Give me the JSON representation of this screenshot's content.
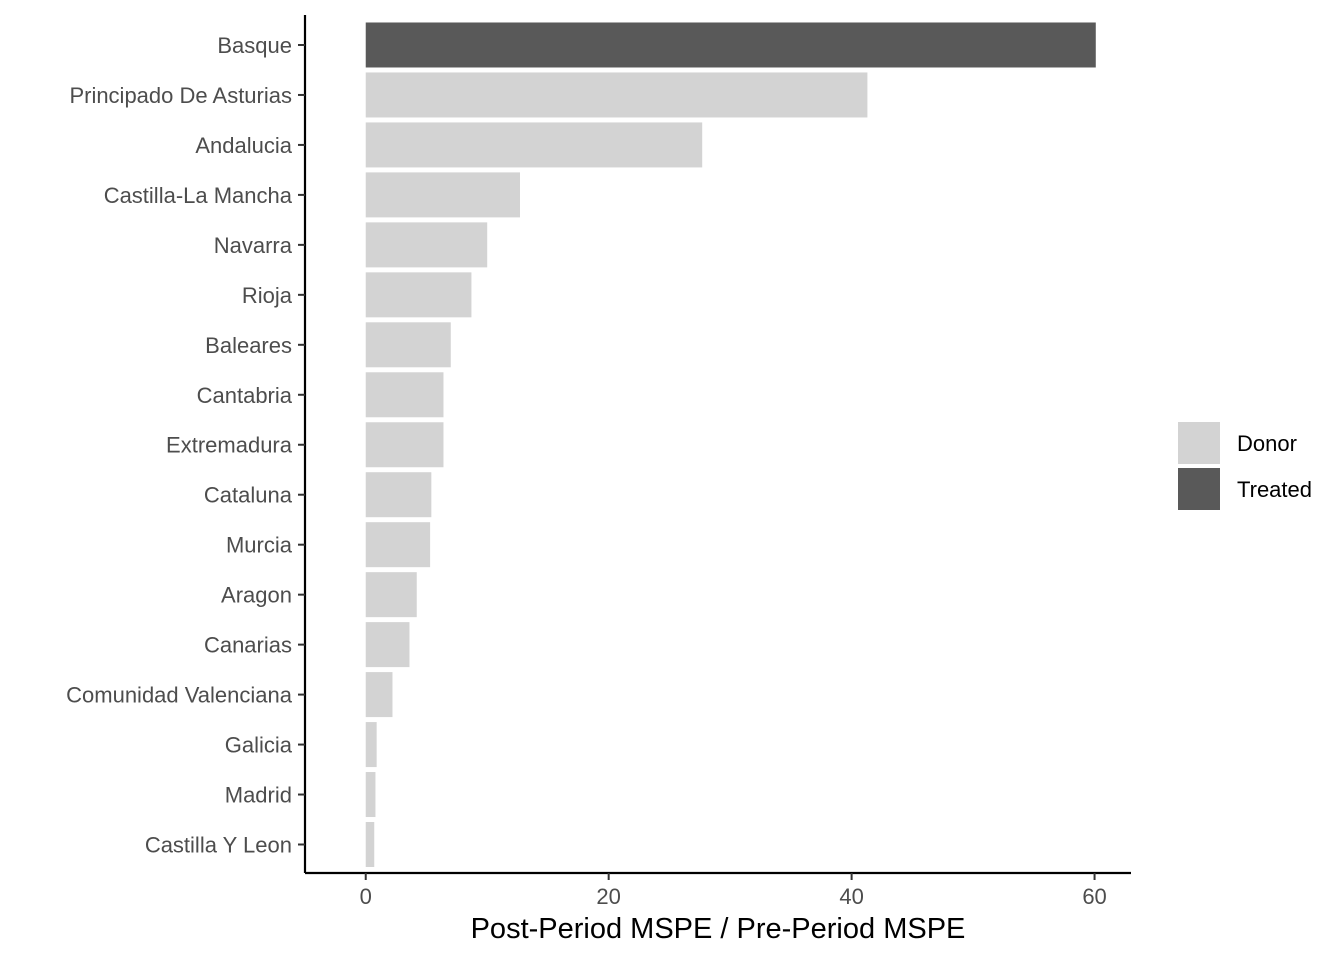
{
  "chart_data": {
    "type": "bar",
    "orientation": "horizontal",
    "title": "",
    "xlabel": "Post-Period MSPE / Pre-Period MSPE",
    "ylabel": "",
    "xlim": [
      -5,
      63
    ],
    "x_ticks": [
      0,
      20,
      40,
      60
    ],
    "x_tick_labels": [
      "0",
      "20",
      "40",
      "60"
    ],
    "grid": false,
    "legend_position": "right",
    "legend": [
      {
        "name": "Donor",
        "color": "#d3d3d3"
      },
      {
        "name": "Treated",
        "color": "#595959"
      }
    ],
    "categories": [
      "Basque",
      "Principado De Asturias",
      "Andalucia",
      "Castilla-La Mancha",
      "Navarra",
      "Rioja",
      "Baleares",
      "Cantabria",
      "Extremadura",
      "Cataluna",
      "Murcia",
      "Aragon",
      "Canarias",
      "Comunidad Valenciana",
      "Galicia",
      "Madrid",
      "Castilla Y Leon"
    ],
    "values": [
      60.1,
      41.3,
      27.7,
      12.7,
      10.0,
      8.7,
      7.0,
      6.4,
      6.4,
      5.4,
      5.3,
      4.2,
      3.6,
      2.2,
      0.9,
      0.8,
      0.7
    ],
    "groups": [
      "Treated",
      "Donor",
      "Donor",
      "Donor",
      "Donor",
      "Donor",
      "Donor",
      "Donor",
      "Donor",
      "Donor",
      "Donor",
      "Donor",
      "Donor",
      "Donor",
      "Donor",
      "Donor",
      "Donor"
    ]
  }
}
